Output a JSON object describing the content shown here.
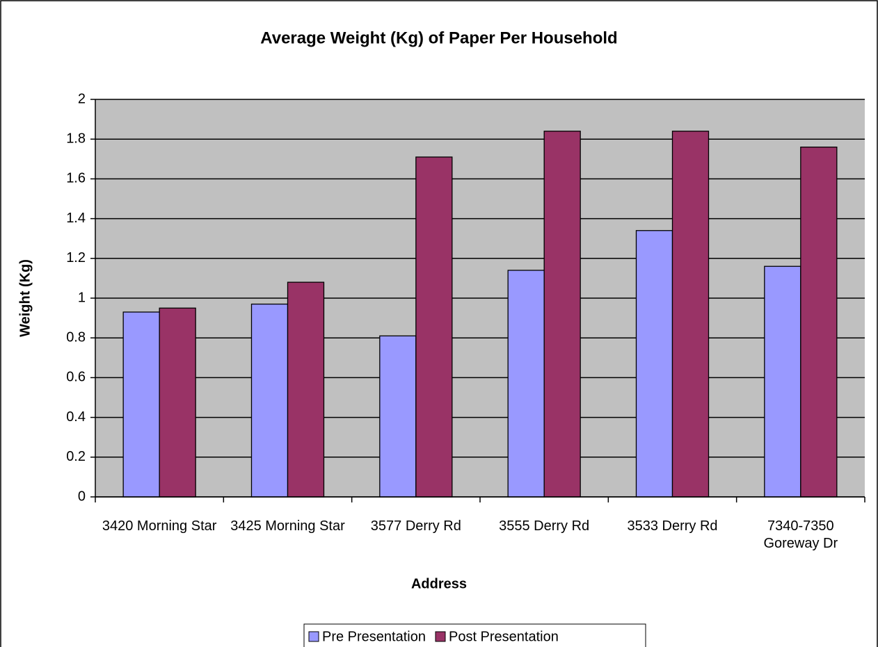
{
  "chart_data": {
    "type": "bar",
    "title": "Average Weight (Kg) of Paper Per Household",
    "x_label": "Address",
    "y_label": "Weight (Kg)",
    "categories": [
      "3420 Morning Star",
      "3425 Morning Star",
      "3577 Derry Rd",
      "3555 Derry Rd",
      "3533 Derry Rd",
      "7340-7350 Goreway Dr"
    ],
    "series": [
      {
        "name": "Pre Presentation",
        "color": "#9999ff",
        "values": [
          0.93,
          0.97,
          0.81,
          1.14,
          1.34,
          1.16
        ]
      },
      {
        "name": "Post Presentation",
        "color": "#993366",
        "values": [
          0.95,
          1.08,
          1.71,
          1.84,
          1.84,
          1.76
        ]
      }
    ],
    "ylim": [
      0,
      2
    ],
    "yticks": [
      0,
      0.2,
      0.4,
      0.6,
      0.8,
      1,
      1.2,
      1.4,
      1.6,
      1.8,
      2
    ],
    "grid": true,
    "legend": "bottom"
  }
}
